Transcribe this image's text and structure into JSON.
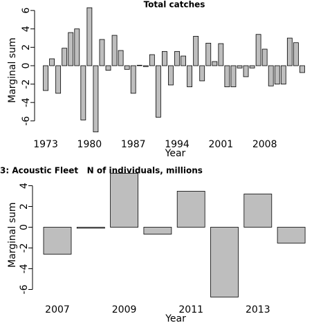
{
  "chart_data": [
    {
      "type": "bar",
      "title": "Total catches",
      "ylabel": "Marginal sum",
      "xlabel": "Year",
      "x": [
        1973,
        1974,
        1975,
        1976,
        1977,
        1978,
        1979,
        1980,
        1981,
        1982,
        1983,
        1984,
        1985,
        1986,
        1987,
        1988,
        1989,
        1990,
        1991,
        1992,
        1993,
        1994,
        1995,
        1996,
        1997,
        1998,
        1999,
        2000,
        2001,
        2002,
        2003,
        2004,
        2005,
        2006,
        2007,
        2008,
        2009,
        2010,
        2011,
        2012,
        2013,
        2014
      ],
      "values": [
        -2.7,
        0.75,
        -3.0,
        1.9,
        3.6,
        4.0,
        -5.9,
        6.3,
        -7.2,
        2.85,
        -0.5,
        3.3,
        1.65,
        -0.4,
        -3.0,
        0.05,
        -0.1,
        1.2,
        -5.6,
        1.55,
        -2.1,
        1.55,
        1.05,
        -2.3,
        3.2,
        -1.65,
        2.45,
        0.45,
        2.4,
        -2.3,
        -2.3,
        -0.25,
        -1.2,
        -0.25,
        3.4,
        1.8,
        -2.2,
        -2.0,
        -2.0,
        3.0,
        2.5,
        -0.75
      ],
      "color": "#bebebe",
      "xlim": [
        1972,
        2015
      ],
      "xticks": [
        1973,
        1980,
        1987,
        1994,
        2001,
        2008
      ],
      "ylim": [
        -7.5,
        6.5
      ],
      "yticks": [
        6,
        4,
        2,
        0,
        -2,
        -4,
        -6
      ]
    },
    {
      "type": "bar",
      "title": "3: Acoustic Fleet   N of individuals, millions",
      "ylabel": "Marginal sum",
      "xlabel": "Year",
      "x": [
        2007,
        2008,
        2009,
        2010,
        2011,
        2012,
        2013,
        2014
      ],
      "values": [
        -2.6,
        -0.1,
        5.2,
        -0.67,
        3.47,
        -6.73,
        3.2,
        -1.53
      ],
      "color": "#bebebe",
      "xlim": [
        2006,
        2015
      ],
      "xticks": [
        2007,
        2009,
        2011,
        2013
      ],
      "ylim": [
        -6.8,
        5.3
      ],
      "yticks": [
        4,
        2,
        0,
        -2,
        -4,
        -6
      ]
    }
  ]
}
